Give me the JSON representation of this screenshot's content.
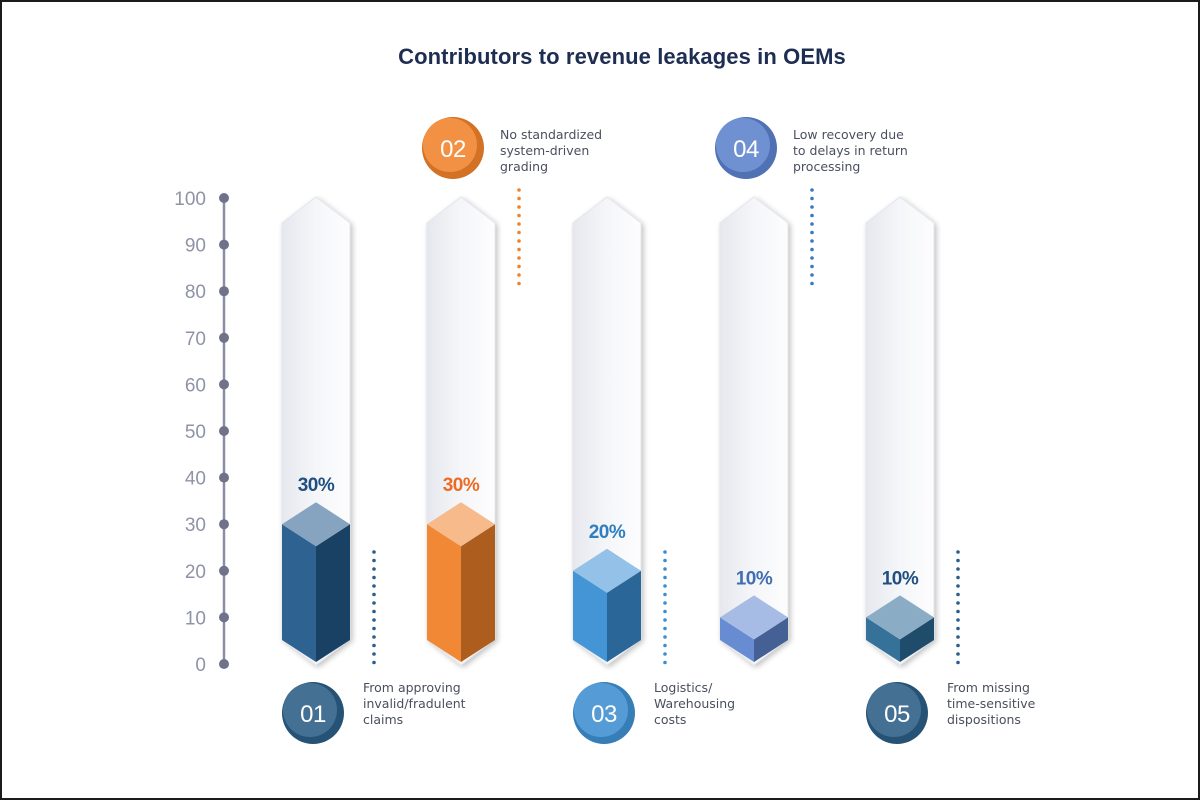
{
  "chart_data": {
    "type": "bar",
    "title": "Contributors to revenue leakages in OEMs",
    "xlabel": "",
    "ylabel": "",
    "ylim": [
      0,
      100
    ],
    "yticks": [
      0,
      10,
      20,
      30,
      40,
      50,
      60,
      70,
      80,
      90,
      100
    ],
    "categories": [
      "01",
      "02",
      "03",
      "04",
      "05"
    ],
    "values": [
      30,
      30,
      20,
      10,
      10
    ],
    "value_labels": [
      "30%",
      "30%",
      "20%",
      "10%",
      "10%"
    ],
    "descriptions": [
      [
        "From approving",
        "invalid/fradulent",
        "claims"
      ],
      [
        "No standardized",
        "system-driven",
        "grading"
      ],
      [
        "Logistics/",
        "Warehousing",
        "costs"
      ],
      [
        "Low recovery due",
        "to delays in return",
        "processing"
      ],
      [
        "From missing",
        "time-sensitive",
        "dispositions"
      ]
    ],
    "annotation_positions": [
      "bottom",
      "top",
      "bottom",
      "top",
      "bottom"
    ],
    "colors": {
      "bars": [
        "#235a8a",
        "#f0822a",
        "#3a8fd3",
        "#5f86cf",
        "#2b6a95"
      ],
      "value_labels": [
        "#1f4f80",
        "#ec6b24",
        "#2f7fc0",
        "#3f6fb0",
        "#1f4f80"
      ],
      "badges": [
        "#2a5d85",
        "#f0822a",
        "#3e8fd0",
        "#5b82cc",
        "#2a5d85"
      ],
      "dots": [
        "#2b5e8e",
        "#f0822a",
        "#3a8fd3",
        "#3a78c2",
        "#2b5e8e"
      ],
      "axis": "#8a8da3",
      "title": "#1e2d52"
    }
  }
}
